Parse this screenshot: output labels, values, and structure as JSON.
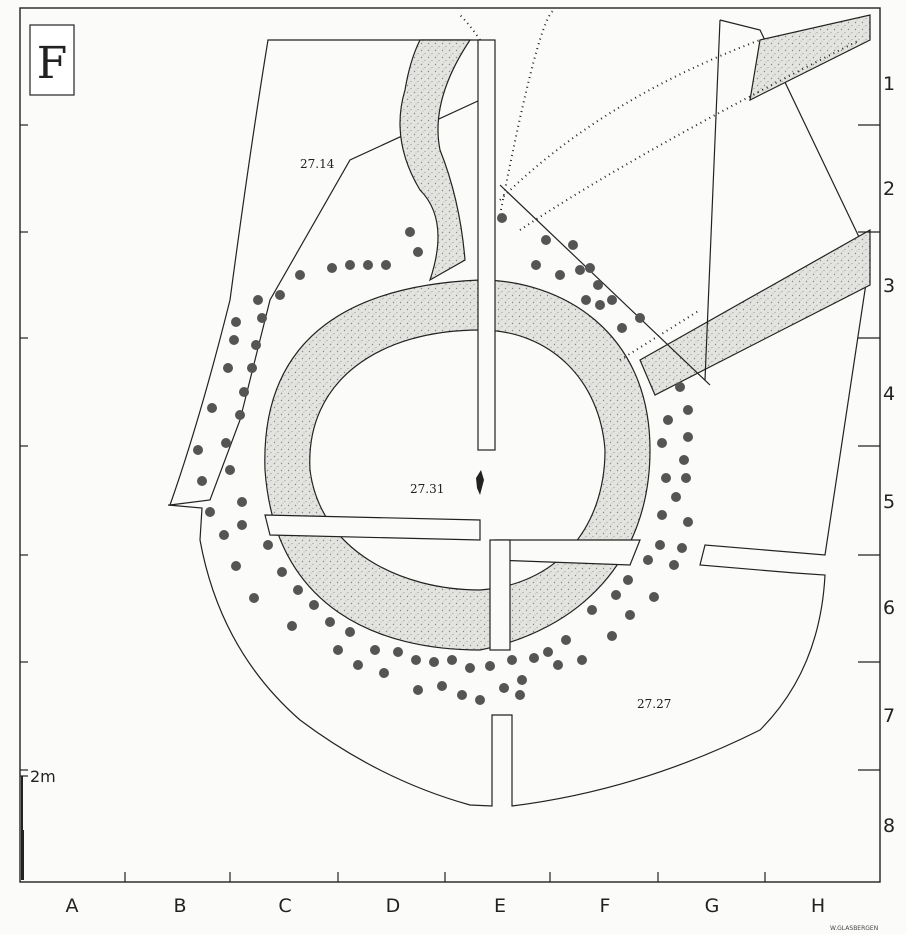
{
  "plan": {
    "section_letter": "F",
    "scale_label": "2m",
    "credit": "W.GLASBERGEN",
    "height_labels": [
      "27.14",
      "27.31",
      "27.27"
    ],
    "columns": [
      "A",
      "B",
      "C",
      "D",
      "E",
      "F",
      "G",
      "H"
    ],
    "rows": [
      "1",
      "2",
      "3",
      "4",
      "5",
      "6",
      "7",
      "8"
    ],
    "colors": {
      "outline": "#222222",
      "stipple": "#d9d9d4",
      "post": "#555555",
      "paper": "#fbfbf9"
    }
  }
}
